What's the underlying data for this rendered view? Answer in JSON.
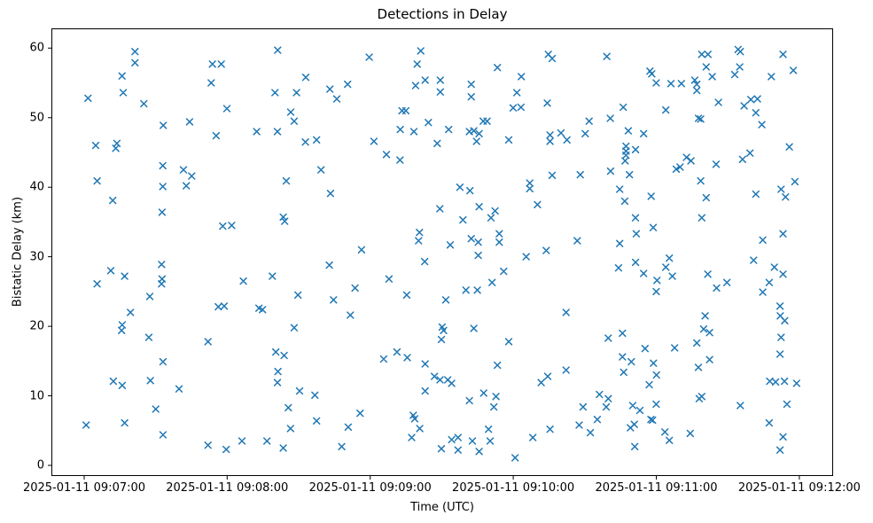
{
  "chart_data": {
    "type": "scatter",
    "title": "Detections in Delay",
    "xlabel": "Time (UTC)",
    "ylabel": "Bistatic Delay (km)",
    "marker": "x",
    "marker_color": "#1f77b4",
    "grid": false,
    "legend": null,
    "x_unit": "minutes after 2025-01-11 09:07:00 UTC",
    "x_tick_minutes": [
      0,
      1,
      2,
      3,
      4,
      5
    ],
    "x_tick_labels": [
      "2025-01-11 09:07:00",
      "2025-01-11 09:08:00",
      "2025-01-11 09:09:00",
      "2025-01-11 09:10:00",
      "2025-01-11 09:11:00",
      "2025-01-11 09:12:00"
    ],
    "y_ticks": [
      0,
      10,
      20,
      30,
      40,
      50,
      60
    ],
    "xlim_minutes": [
      -0.229,
      5.236
    ],
    "ylim": [
      -1.53,
      62.84
    ],
    "points": [
      [
        0.355,
        59.5
      ],
      [
        0.355,
        57.9
      ],
      [
        0.897,
        57.7
      ],
      [
        0.959,
        57.7
      ],
      [
        0.265,
        56.0
      ],
      [
        0.888,
        55.0
      ],
      [
        0.273,
        53.6
      ],
      [
        0.027,
        52.8
      ],
      [
        0.417,
        52.0
      ],
      [
        0.998,
        51.3
      ],
      [
        0.553,
        48.9
      ],
      [
        0.737,
        49.4
      ],
      [
        0.923,
        47.4
      ],
      [
        0.081,
        46.0
      ],
      [
        0.229,
        46.3
      ],
      [
        0.221,
        45.6
      ],
      [
        0.55,
        43.1
      ],
      [
        0.694,
        42.5
      ],
      [
        0.752,
        41.6
      ],
      [
        0.091,
        40.9
      ],
      [
        0.55,
        40.1
      ],
      [
        0.714,
        40.2
      ],
      [
        0.2,
        38.1
      ],
      [
        0.545,
        36.4
      ],
      [
        0.969,
        34.4
      ],
      [
        1.031,
        34.5
      ],
      [
        1.353,
        59.7
      ],
      [
        1.993,
        58.7
      ],
      [
        2.353,
        59.6
      ],
      [
        2.328,
        57.7
      ],
      [
        1.549,
        55.8
      ],
      [
        1.842,
        54.8
      ],
      [
        1.718,
        54.1
      ],
      [
        2.384,
        55.4
      ],
      [
        2.49,
        55.4
      ],
      [
        2.317,
        54.6
      ],
      [
        2.49,
        53.7
      ],
      [
        1.334,
        53.6
      ],
      [
        1.485,
        53.6
      ],
      [
        1.766,
        52.7
      ],
      [
        1.444,
        50.8
      ],
      [
        2.222,
        51.0
      ],
      [
        2.249,
        51.0
      ],
      [
        1.468,
        49.5
      ],
      [
        2.21,
        48.3
      ],
      [
        2.305,
        48.0
      ],
      [
        2.406,
        49.3
      ],
      [
        1.206,
        48.0
      ],
      [
        1.351,
        48.0
      ],
      [
        1.547,
        46.5
      ],
      [
        1.625,
        46.8
      ],
      [
        2.026,
        46.6
      ],
      [
        2.468,
        46.3
      ],
      [
        2.113,
        44.7
      ],
      [
        2.208,
        43.9
      ],
      [
        1.656,
        42.5
      ],
      [
        1.413,
        40.9
      ],
      [
        1.722,
        39.1
      ],
      [
        2.487,
        36.9
      ],
      [
        1.392,
        35.7
      ],
      [
        1.402,
        35.1
      ],
      [
        2.344,
        33.5
      ],
      [
        2.338,
        32.3
      ],
      [
        1.939,
        31.0
      ],
      [
        3.245,
        59.1
      ],
      [
        3.272,
        58.5
      ],
      [
        3.654,
        58.8
      ],
      [
        2.889,
        57.2
      ],
      [
        3.056,
        55.9
      ],
      [
        2.706,
        54.8
      ],
      [
        2.706,
        53.0
      ],
      [
        3.025,
        53.6
      ],
      [
        2.999,
        51.4
      ],
      [
        3.054,
        51.5
      ],
      [
        3.238,
        52.1
      ],
      [
        3.769,
        51.5
      ],
      [
        2.79,
        49.5
      ],
      [
        2.817,
        49.5
      ],
      [
        3.53,
        49.5
      ],
      [
        3.678,
        49.9
      ],
      [
        2.548,
        48.3
      ],
      [
        2.693,
        48.0
      ],
      [
        2.724,
        48.1
      ],
      [
        2.761,
        47.7
      ],
      [
        3.804,
        48.1
      ],
      [
        3.503,
        47.7
      ],
      [
        3.257,
        47.5
      ],
      [
        3.333,
        47.8
      ],
      [
        3.375,
        46.8
      ],
      [
        3.257,
        46.6
      ],
      [
        2.743,
        46.6
      ],
      [
        2.968,
        46.8
      ],
      [
        3.788,
        45.9
      ],
      [
        3.788,
        45.2
      ],
      [
        3.788,
        44.6
      ],
      [
        3.855,
        45.4
      ],
      [
        3.782,
        43.8
      ],
      [
        3.68,
        42.3
      ],
      [
        3.812,
        41.8
      ],
      [
        3.272,
        41.7
      ],
      [
        3.468,
        41.8
      ],
      [
        3.115,
        40.6
      ],
      [
        3.115,
        39.8
      ],
      [
        2.627,
        40.0
      ],
      [
        2.697,
        39.5
      ],
      [
        3.744,
        39.7
      ],
      [
        3.169,
        37.5
      ],
      [
        3.779,
        38.0
      ],
      [
        2.761,
        37.2
      ],
      [
        2.873,
        36.6
      ],
      [
        2.844,
        35.6
      ],
      [
        2.648,
        35.3
      ],
      [
        2.706,
        32.6
      ],
      [
        2.755,
        32.1
      ],
      [
        2.902,
        33.3
      ],
      [
        2.902,
        32.1
      ],
      [
        3.447,
        32.3
      ],
      [
        3.744,
        31.9
      ],
      [
        3.23,
        30.9
      ],
      [
        4.318,
        59.1
      ],
      [
        4.361,
        59.1
      ],
      [
        4.572,
        59.8
      ],
      [
        4.587,
        59.5
      ],
      [
        4.886,
        59.1
      ],
      [
        3.955,
        56.7
      ],
      [
        3.968,
        56.3
      ],
      [
        4.349,
        57.3
      ],
      [
        4.583,
        57.3
      ],
      [
        4.958,
        56.8
      ],
      [
        4.548,
        56.2
      ],
      [
        4.804,
        55.9
      ],
      [
        3.999,
        55.0
      ],
      [
        4.102,
        54.9
      ],
      [
        4.175,
        54.9
      ],
      [
        4.269,
        55.4
      ],
      [
        4.283,
        54.8
      ],
      [
        4.391,
        55.9
      ],
      [
        4.283,
        53.9
      ],
      [
        4.434,
        52.2
      ],
      [
        4.661,
        52.6
      ],
      [
        4.707,
        52.7
      ],
      [
        4.614,
        51.7
      ],
      [
        4.696,
        50.7
      ],
      [
        4.066,
        51.1
      ],
      [
        4.295,
        49.9
      ],
      [
        4.31,
        49.8
      ],
      [
        4.738,
        49.0
      ],
      [
        3.911,
        47.7
      ],
      [
        4.93,
        45.8
      ],
      [
        4.655,
        44.9
      ],
      [
        4.603,
        44.0
      ],
      [
        4.211,
        44.3
      ],
      [
        4.242,
        43.8
      ],
      [
        4.418,
        43.3
      ],
      [
        4.139,
        42.6
      ],
      [
        4.166,
        42.9
      ],
      [
        4.31,
        40.9
      ],
      [
        4.969,
        40.8
      ],
      [
        4.872,
        39.7
      ],
      [
        4.903,
        38.6
      ],
      [
        3.964,
        38.7
      ],
      [
        4.696,
        39.0
      ],
      [
        4.349,
        38.5
      ],
      [
        3.854,
        35.6
      ],
      [
        3.978,
        34.2
      ],
      [
        4.318,
        35.6
      ],
      [
        3.86,
        33.3
      ],
      [
        4.744,
        32.4
      ],
      [
        4.886,
        33.3
      ],
      [
        0.541,
        28.9
      ],
      [
        0.186,
        28.0
      ],
      [
        0.283,
        27.2
      ],
      [
        0.091,
        26.1
      ],
      [
        0.545,
        26.8
      ],
      [
        0.541,
        26.1
      ],
      [
        0.459,
        24.3
      ],
      [
        1.113,
        26.5
      ],
      [
        0.938,
        22.8
      ],
      [
        0.979,
        22.9
      ],
      [
        0.324,
        22.0
      ],
      [
        0.266,
        20.2
      ],
      [
        0.262,
        19.4
      ],
      [
        0.452,
        18.4
      ],
      [
        0.866,
        17.8
      ],
      [
        0.551,
        14.9
      ],
      [
        0.204,
        12.1
      ],
      [
        0.266,
        11.5
      ],
      [
        0.463,
        12.2
      ],
      [
        0.663,
        11.0
      ],
      [
        0.5,
        8.1
      ],
      [
        0.283,
        6.1
      ],
      [
        0.014,
        5.8
      ],
      [
        0.551,
        4.4
      ],
      [
        0.866,
        2.9
      ],
      [
        0.993,
        2.3
      ],
      [
        1.103,
        3.5
      ],
      [
        1.714,
        28.8
      ],
      [
        2.381,
        29.3
      ],
      [
        1.316,
        27.2
      ],
      [
        2.131,
        26.8
      ],
      [
        1.894,
        25.5
      ],
      [
        2.255,
        24.5
      ],
      [
        1.495,
        24.5
      ],
      [
        1.743,
        23.8
      ],
      [
        1.222,
        22.6
      ],
      [
        1.247,
        22.4
      ],
      [
        1.861,
        21.6
      ],
      [
        1.468,
        19.8
      ],
      [
        1.34,
        16.3
      ],
      [
        1.398,
        15.8
      ],
      [
        2.094,
        15.3
      ],
      [
        2.187,
        16.3
      ],
      [
        2.259,
        15.5
      ],
      [
        2.384,
        14.6
      ],
      [
        1.355,
        13.5
      ],
      [
        1.351,
        11.9
      ],
      [
        2.449,
        12.8
      ],
      [
        1.506,
        10.7
      ],
      [
        1.613,
        10.1
      ],
      [
        2.384,
        10.7
      ],
      [
        1.427,
        8.3
      ],
      [
        1.929,
        7.5
      ],
      [
        2.301,
        7.2
      ],
      [
        2.311,
        6.7
      ],
      [
        1.625,
        6.4
      ],
      [
        1.846,
        5.5
      ],
      [
        1.443,
        5.3
      ],
      [
        2.346,
        5.3
      ],
      [
        1.278,
        3.5
      ],
      [
        2.29,
        4.0
      ],
      [
        1.392,
        2.5
      ],
      [
        1.801,
        2.7
      ],
      [
        2.755,
        30.2
      ],
      [
        3.09,
        30.0
      ],
      [
        3.736,
        28.4
      ],
      [
        2.933,
        27.9
      ],
      [
        2.852,
        26.3
      ],
      [
        2.669,
        25.2
      ],
      [
        2.749,
        25.2
      ],
      [
        2.528,
        23.8
      ],
      [
        3.369,
        22.0
      ],
      [
        2.503,
        19.9
      ],
      [
        2.513,
        19.4
      ],
      [
        2.497,
        18.1
      ],
      [
        2.724,
        19.7
      ],
      [
        2.968,
        17.8
      ],
      [
        3.664,
        18.3
      ],
      [
        3.763,
        19.0
      ],
      [
        3.763,
        15.6
      ],
      [
        3.825,
        14.9
      ],
      [
        2.889,
        14.4
      ],
      [
        3.772,
        13.4
      ],
      [
        3.369,
        13.7
      ],
      [
        3.195,
        11.9
      ],
      [
        3.241,
        12.8
      ],
      [
        2.488,
        12.3
      ],
      [
        2.542,
        12.3
      ],
      [
        2.569,
        11.8
      ],
      [
        2.793,
        10.4
      ],
      [
        2.879,
        9.9
      ],
      [
        2.693,
        9.3
      ],
      [
        2.864,
        8.4
      ],
      [
        3.602,
        10.2
      ],
      [
        3.664,
        9.6
      ],
      [
        3.488,
        8.4
      ],
      [
        3.65,
        8.4
      ],
      [
        3.835,
        8.6
      ],
      [
        3.587,
        6.6
      ],
      [
        3.461,
        5.8
      ],
      [
        3.539,
        4.7
      ],
      [
        2.827,
        5.2
      ],
      [
        3.257,
        5.2
      ],
      [
        3.137,
        4.0
      ],
      [
        2.569,
        3.7
      ],
      [
        2.614,
        4.0
      ],
      [
        2.714,
        3.5
      ],
      [
        2.838,
        3.5
      ],
      [
        2.497,
        2.4
      ],
      [
        2.614,
        2.2
      ],
      [
        2.761,
        2.0
      ],
      [
        3.013,
        1.1
      ],
      [
        3.819,
        5.4
      ],
      [
        3.849,
        2.7
      ],
      [
        4.091,
        29.8
      ],
      [
        4.68,
        29.5
      ],
      [
        3.855,
        29.2
      ],
      [
        4.066,
        28.5
      ],
      [
        3.911,
        27.6
      ],
      [
        4.112,
        27.2
      ],
      [
        4.825,
        28.5
      ],
      [
        4.886,
        27.5
      ],
      [
        4.36,
        27.5
      ],
      [
        4.005,
        26.6
      ],
      [
        4.494,
        26.3
      ],
      [
        4.421,
        25.5
      ],
      [
        4.789,
        26.3
      ],
      [
        4.744,
        24.9
      ],
      [
        3.999,
        25.0
      ],
      [
        4.865,
        22.9
      ],
      [
        4.341,
        21.5
      ],
      [
        4.867,
        21.5
      ],
      [
        4.898,
        20.8
      ],
      [
        4.331,
        19.6
      ],
      [
        4.372,
        19.1
      ],
      [
        4.283,
        17.6
      ],
      [
        4.128,
        16.9
      ],
      [
        4.872,
        18.4
      ],
      [
        4.865,
        16.0
      ],
      [
        4.372,
        15.2
      ],
      [
        4.294,
        14.1
      ],
      [
        3.98,
        14.7
      ],
      [
        4.001,
        13.0
      ],
      [
        4.793,
        12.1
      ],
      [
        4.834,
        12.0
      ],
      [
        4.896,
        12.1
      ],
      [
        4.981,
        11.8
      ],
      [
        4.3,
        9.6
      ],
      [
        4.318,
        9.9
      ],
      [
        3.999,
        8.8
      ],
      [
        4.587,
        8.6
      ],
      [
        4.913,
        8.8
      ],
      [
        3.962,
        6.6
      ],
      [
        3.974,
        6.5
      ],
      [
        4.789,
        6.1
      ],
      [
        4.06,
        4.8
      ],
      [
        4.091,
        3.6
      ],
      [
        4.237,
        4.6
      ],
      [
        4.886,
        4.1
      ],
      [
        4.865,
        2.2
      ],
      [
        3.921,
        16.8
      ],
      [
        3.95,
        11.6
      ],
      [
        3.885,
        7.9
      ],
      [
        3.846,
        5.9
      ],
      [
        2.559,
        31.7
      ]
    ]
  }
}
